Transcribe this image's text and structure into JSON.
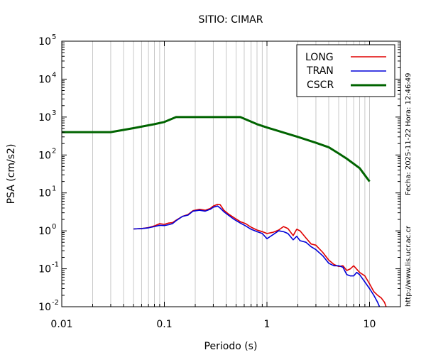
{
  "meta": {
    "fecha": "Fecha: 2025-11-22 Hora: 12:46:49",
    "url": "http://www.lis.ucr.ac.cr"
  },
  "chart_data": {
    "type": "line",
    "title": "SITIO: CIMAR",
    "xlabel": "Periodo (s)",
    "ylabel": "PSA (cm/s2)",
    "x_scale": "log",
    "y_scale": "log",
    "xlim": [
      0.01,
      20
    ],
    "ylim": [
      0.01,
      100000
    ],
    "grid": true,
    "legend_position": "top-right",
    "x_ticks": [
      {
        "value": 0.01,
        "label": "0.01"
      },
      {
        "value": 0.1,
        "label": "0.1"
      },
      {
        "value": 1,
        "label": "1"
      },
      {
        "value": 10,
        "label": "10"
      }
    ],
    "y_ticks": [
      {
        "value": 0.01,
        "base": "10",
        "exp": "-2"
      },
      {
        "value": 0.1,
        "base": "10",
        "exp": "-1"
      },
      {
        "value": 1,
        "base": "10",
        "exp": "0"
      },
      {
        "value": 10,
        "base": "10",
        "exp": "1"
      },
      {
        "value": 100,
        "base": "10",
        "exp": "2"
      },
      {
        "value": 1000,
        "base": "10",
        "exp": "3"
      },
      {
        "value": 10000,
        "base": "10",
        "exp": "4"
      },
      {
        "value": 100000,
        "base": "10",
        "exp": "5"
      }
    ],
    "series": [
      {
        "name": "LONG",
        "color": "#e00000",
        "points": [
          [
            0.05,
            1.12
          ],
          [
            0.06,
            1.15
          ],
          [
            0.07,
            1.22
          ],
          [
            0.08,
            1.35
          ],
          [
            0.09,
            1.55
          ],
          [
            0.1,
            1.48
          ],
          [
            0.11,
            1.6
          ],
          [
            0.12,
            1.65
          ],
          [
            0.13,
            1.9
          ],
          [
            0.15,
            2.4
          ],
          [
            0.17,
            2.7
          ],
          [
            0.19,
            3.4
          ],
          [
            0.22,
            3.7
          ],
          [
            0.25,
            3.5
          ],
          [
            0.28,
            3.9
          ],
          [
            0.3,
            4.5
          ],
          [
            0.33,
            5.0
          ],
          [
            0.35,
            4.9
          ],
          [
            0.38,
            3.5
          ],
          [
            0.42,
            2.8
          ],
          [
            0.48,
            2.2
          ],
          [
            0.55,
            1.75
          ],
          [
            0.62,
            1.55
          ],
          [
            0.7,
            1.25
          ],
          [
            0.8,
            1.05
          ],
          [
            0.9,
            0.95
          ],
          [
            1.0,
            0.85
          ],
          [
            1.15,
            0.92
          ],
          [
            1.3,
            1.05
          ],
          [
            1.45,
            1.3
          ],
          [
            1.6,
            1.15
          ],
          [
            1.8,
            0.75
          ],
          [
            1.95,
            1.1
          ],
          [
            2.1,
            1.0
          ],
          [
            2.4,
            0.65
          ],
          [
            2.7,
            0.45
          ],
          [
            3.0,
            0.42
          ],
          [
            3.5,
            0.27
          ],
          [
            4.0,
            0.17
          ],
          [
            4.5,
            0.13
          ],
          [
            5.0,
            0.115
          ],
          [
            5.5,
            0.12
          ],
          [
            6.0,
            0.09
          ],
          [
            6.5,
            0.1
          ],
          [
            7.0,
            0.12
          ],
          [
            8.0,
            0.08
          ],
          [
            9.0,
            0.065
          ],
          [
            10.0,
            0.04
          ],
          [
            11.0,
            0.025
          ],
          [
            12.0,
            0.02
          ],
          [
            13.0,
            0.017
          ],
          [
            14.0,
            0.013
          ],
          [
            14.5,
            0.01
          ]
        ]
      },
      {
        "name": "TRAN",
        "color": "#0000d8",
        "points": [
          [
            0.05,
            1.12
          ],
          [
            0.06,
            1.15
          ],
          [
            0.07,
            1.2
          ],
          [
            0.08,
            1.3
          ],
          [
            0.09,
            1.4
          ],
          [
            0.1,
            1.38
          ],
          [
            0.11,
            1.45
          ],
          [
            0.12,
            1.55
          ],
          [
            0.13,
            1.85
          ],
          [
            0.15,
            2.4
          ],
          [
            0.17,
            2.6
          ],
          [
            0.19,
            3.3
          ],
          [
            0.22,
            3.5
          ],
          [
            0.25,
            3.3
          ],
          [
            0.28,
            3.7
          ],
          [
            0.3,
            4.2
          ],
          [
            0.33,
            4.5
          ],
          [
            0.35,
            4.0
          ],
          [
            0.38,
            3.2
          ],
          [
            0.42,
            2.6
          ],
          [
            0.48,
            2.0
          ],
          [
            0.55,
            1.6
          ],
          [
            0.62,
            1.35
          ],
          [
            0.7,
            1.1
          ],
          [
            0.8,
            0.95
          ],
          [
            0.9,
            0.85
          ],
          [
            1.0,
            0.62
          ],
          [
            1.15,
            0.8
          ],
          [
            1.3,
            1.0
          ],
          [
            1.45,
            0.95
          ],
          [
            1.6,
            0.85
          ],
          [
            1.8,
            0.58
          ],
          [
            1.95,
            0.72
          ],
          [
            2.1,
            0.55
          ],
          [
            2.4,
            0.5
          ],
          [
            2.7,
            0.38
          ],
          [
            3.0,
            0.32
          ],
          [
            3.5,
            0.22
          ],
          [
            4.0,
            0.14
          ],
          [
            4.5,
            0.12
          ],
          [
            5.0,
            0.12
          ],
          [
            5.5,
            0.11
          ],
          [
            6.0,
            0.07
          ],
          [
            6.5,
            0.065
          ],
          [
            7.0,
            0.065
          ],
          [
            7.5,
            0.08
          ],
          [
            8.0,
            0.07
          ],
          [
            9.0,
            0.045
          ],
          [
            10.0,
            0.03
          ],
          [
            11.0,
            0.02
          ],
          [
            12.0,
            0.013
          ],
          [
            12.5,
            0.01
          ]
        ]
      },
      {
        "name": "CSCR",
        "color": "#006400",
        "points": [
          [
            0.01,
            400
          ],
          [
            0.03,
            400
          ],
          [
            0.05,
            510
          ],
          [
            0.08,
            650
          ],
          [
            0.1,
            740
          ],
          [
            0.13,
            1000
          ],
          [
            0.2,
            1000
          ],
          [
            0.3,
            1000
          ],
          [
            0.55,
            1000
          ],
          [
            0.8,
            650
          ],
          [
            1.0,
            530
          ],
          [
            1.5,
            380
          ],
          [
            2.0,
            300
          ],
          [
            3.0,
            210
          ],
          [
            4.0,
            160
          ],
          [
            5.0,
            110
          ],
          [
            6.0,
            80
          ],
          [
            8.0,
            45
          ],
          [
            10.0,
            20
          ]
        ]
      }
    ]
  }
}
